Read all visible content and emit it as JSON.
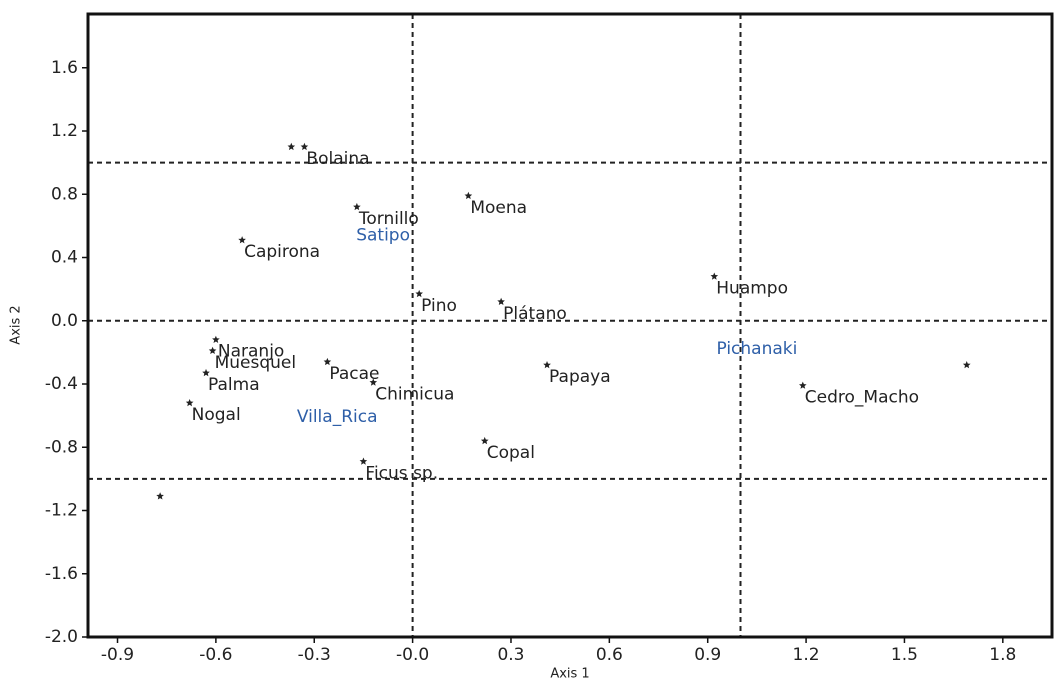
{
  "chart_data": {
    "type": "scatter",
    "xlabel": "Axis 1",
    "ylabel": "Axis 2",
    "x": [
      -0.37,
      -0.33,
      -0.17,
      0.17,
      -0.52,
      0.02,
      0.27,
      0.92,
      -0.6,
      -0.61,
      -0.63,
      -0.26,
      -0.12,
      0.41,
      -0.68,
      0.22,
      -0.15,
      1.19,
      1.69,
      -0.77
    ],
    "values": [
      1.1,
      1.1,
      0.72,
      0.79,
      0.51,
      0.17,
      0.12,
      0.28,
      -0.12,
      -0.19,
      -0.33,
      -0.26,
      -0.39,
      -0.28,
      -0.52,
      -0.76,
      -0.89,
      -0.41,
      -0.28,
      -1.11
    ],
    "labels": [
      null,
      "Bolaina",
      "Tornillo",
      "Moena",
      "Capirona",
      "Pino",
      "Plátano",
      "Huampo",
      "Naranjo",
      "Muesquel",
      "Palma",
      "Pacae",
      "Chimicua",
      "Papaya",
      "Nogal",
      "Copal",
      "Ficus sp.",
      "Cedro_Macho",
      null,
      null
    ],
    "color": "#222222",
    "annotations": [
      {
        "text": "Satipo",
        "x": -0.09,
        "y": 0.54
      },
      {
        "text": "Villa_Rica",
        "x": -0.23,
        "y": -0.61
      },
      {
        "text": "Pichanaki",
        "x": 1.05,
        "y": -0.18
      }
    ],
    "vlines": [
      0,
      1.0
    ],
    "hlines": [
      1.0,
      0,
      -1.0
    ],
    "xlim": [
      -0.99,
      1.95
    ],
    "ylim": [
      -2.0,
      1.94
    ],
    "xticks": [
      -0.9,
      -0.6,
      -0.3,
      {
        "value": 0,
        "label": "-0.0"
      },
      0.3,
      0.6,
      0.9,
      1.2,
      1.5,
      1.8
    ],
    "yticks": [
      {
        "value": -2.0,
        "label": "-2.0"
      },
      -1.6,
      -1.2,
      -0.8,
      -0.4,
      {
        "value": 0,
        "label": "0.0"
      },
      0.4,
      0.8,
      1.2,
      1.6
    ]
  }
}
